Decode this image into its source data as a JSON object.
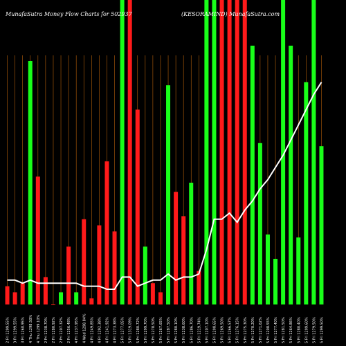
{
  "title_left": "MunafaSutra  Money Flow  Charts for 502937",
  "title_right": "(KESORAMIND)  MunafaSutra.com",
  "colors": {
    "background": "#000000",
    "up": "#19ff19",
    "down": "#ff1a1a",
    "grid": "#b8620a",
    "line": "#ffffff"
  },
  "chart_data": {
    "type": "bar",
    "title": "MunafaSutra  Money Flow  Charts for 502937",
    "subtitle": "(KESORAMIND)  MunafaSutra.com",
    "grid": true,
    "categories": [
      "2 Fri 1299.55%",
      "3 Fri 1299.55%",
      "3 Fri 1260.95%",
      "4 Thu 1298.50%",
      "4 Thu 1299.10%",
      "2 Fri 1238.70%",
      "2 Fri 1280.92%",
      "2 Fri 1207.32%",
      "2 Fri 1256.48%",
      "4 Fri 1237.95%",
      "4 Wed 1298.84%",
      "4 Fri 1249.85%",
      "4 Fri 1292.38%",
      "4 Fri 1241.92%",
      "4 Fri 1273.38%",
      "5 Fri 1277.05%",
      "5 Fri 1319.09%",
      "5 Fri 1280.72%",
      "5 Fri 1299.70%",
      "5 Fri 1278.50%",
      "5 Fri 1267.65%",
      "5 Fri 1287.50%",
      "5 Fri 1280.10%",
      "5 Fri 1238.60%",
      "5 Fri 1286.70%",
      "5 Fri 1219.74%",
      "5 Fri 1207.10%",
      "5 Fri 1208.65%",
      "5 Fri 1269.50%",
      "5 Fri 1266.57%",
      "5 Fri 1276.15%",
      "5 Fri 1275.30%",
      "5 Fri 1270.20%",
      "5 Fri 1271.62%",
      "5 Fri 1208.55%",
      "5 Fri 1277.40%",
      "5 Fri 1281.50%",
      "5 Fri 1264.86%",
      "5 Fri 1280.40%",
      "5 Fri 1209.60%",
      "5 Fri 1279.50%",
      "5 Fri 1299.50%"
    ],
    "values": [
      0.06,
      0.04,
      0.07,
      0.8,
      0.42,
      0.09,
      0.0,
      0.04,
      0.19,
      0.04,
      0.28,
      0.02,
      0.26,
      0.47,
      0.24,
      1.0,
      1.0,
      0.64,
      0.19,
      0.07,
      0.04,
      0.72,
      0.37,
      0.29,
      0.4,
      0.11,
      1.0,
      1.0,
      1.0,
      1.0,
      1.0,
      1.0,
      0.85,
      0.53,
      0.23,
      0.15,
      1.0,
      0.85,
      0.22,
      0.73,
      1.0,
      0.52
    ],
    "colors": [
      "red",
      "red",
      "red",
      "green",
      "red",
      "red",
      "red",
      "green",
      "red",
      "green",
      "red",
      "red",
      "red",
      "red",
      "red",
      "green",
      "red",
      "red",
      "green",
      "red",
      "red",
      "green",
      "red",
      "red",
      "green",
      "red",
      "green",
      "green",
      "red",
      "red",
      "red",
      "red",
      "green",
      "green",
      "green",
      "green",
      "green",
      "green",
      "green",
      "green",
      "green",
      "green"
    ],
    "line": [
      0.08,
      0.08,
      0.07,
      0.08,
      0.07,
      0.07,
      0.07,
      0.07,
      0.07,
      0.07,
      0.06,
      0.06,
      0.06,
      0.05,
      0.05,
      0.09,
      0.09,
      0.06,
      0.07,
      0.08,
      0.08,
      0.1,
      0.08,
      0.09,
      0.09,
      0.1,
      0.18,
      0.28,
      0.28,
      0.3,
      0.27,
      0.31,
      0.34,
      0.38,
      0.41,
      0.45,
      0.49,
      0.54,
      0.59,
      0.64,
      0.69,
      0.73
    ],
    "ylim": [
      0,
      1
    ],
    "xlabel": "",
    "ylabel": ""
  }
}
